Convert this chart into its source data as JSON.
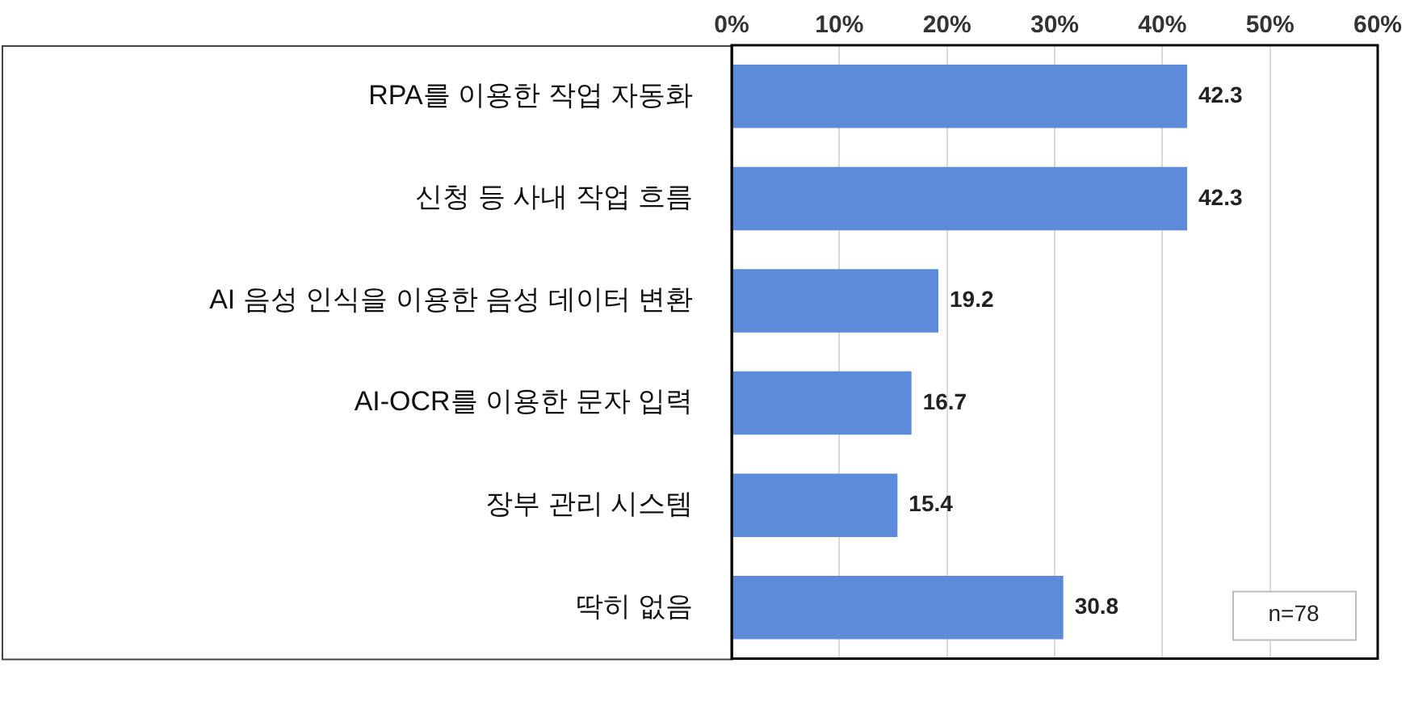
{
  "chart_data": {
    "type": "bar",
    "orientation": "horizontal",
    "categories": [
      "RPA를 이용한 작업 자동화",
      "신청 등 사내 작업 흐름",
      "AI 음성 인식을 이용한 음성 데이터 변환",
      "AI-OCR를 이용한 문자 입력",
      "장부 관리 시스템",
      "딱히 없음"
    ],
    "values": [
      42.3,
      42.3,
      19.2,
      16.7,
      15.4,
      30.8
    ],
    "color": "#5b8bd9",
    "xlim": [
      0,
      60
    ],
    "xticks": [
      {
        "value": 0,
        "label": "0%"
      },
      {
        "value": 10,
        "label": "10%"
      },
      {
        "value": 20,
        "label": "20%"
      },
      {
        "value": 30,
        "label": "30%"
      },
      {
        "value": 40,
        "label": "40%"
      },
      {
        "value": 50,
        "label": "50%"
      },
      {
        "value": 60,
        "label": "60%"
      }
    ],
    "grid": "x",
    "data_labels": true,
    "legend": false,
    "annotations": [
      "n=78"
    ]
  }
}
